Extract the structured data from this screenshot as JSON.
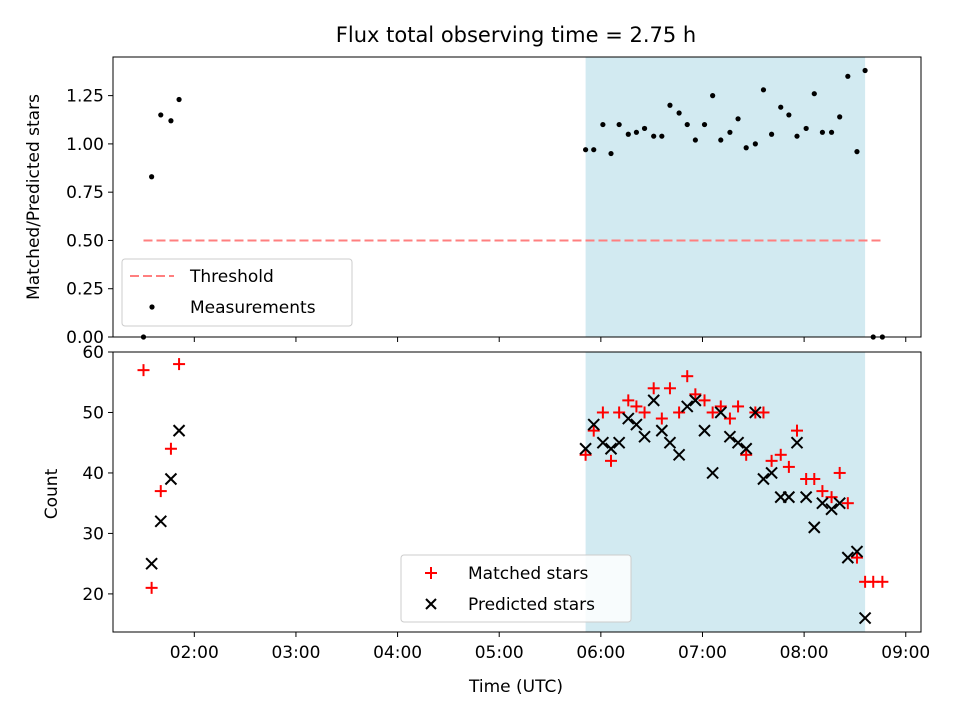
{
  "title": "Flux total observing time = 2.75 h",
  "colors": {
    "shade": "#add8e6",
    "threshold": "#ff7f7f",
    "matched": "#ff0000",
    "predicted": "#000000",
    "measurement": "#000000"
  },
  "chart_data": [
    {
      "type": "scatter",
      "panel": "top",
      "ylabel": "Matched/Predicted stars",
      "xlim": [
        1.2,
        9.15
      ],
      "ylim": [
        0,
        1.45
      ],
      "yticks": [
        0.0,
        0.25,
        0.5,
        0.75,
        1.0,
        1.25
      ],
      "ytick_labels": [
        "0.00",
        "0.25",
        "0.50",
        "0.75",
        "1.00",
        "1.25"
      ],
      "shaded_span": [
        5.85,
        8.6
      ],
      "threshold": {
        "label": "Threshold",
        "y": 0.5,
        "x_range": [
          1.5,
          8.78
        ]
      },
      "legend": {
        "position": "lower left",
        "entries": [
          "Threshold",
          "Measurements"
        ]
      },
      "series": [
        {
          "name": "Measurements",
          "x": [
            1.5,
            1.58,
            1.67,
            1.77,
            1.85,
            5.85,
            5.93,
            6.02,
            6.1,
            6.18,
            6.27,
            6.35,
            6.43,
            6.52,
            6.6,
            6.68,
            6.77,
            6.85,
            6.93,
            7.02,
            7.1,
            7.18,
            7.27,
            7.35,
            7.43,
            7.52,
            7.6,
            7.68,
            7.77,
            7.85,
            7.93,
            8.02,
            8.1,
            8.18,
            8.27,
            8.35,
            8.43,
            8.52,
            8.6,
            8.68,
            8.77
          ],
          "y": [
            0.0,
            0.83,
            1.15,
            1.12,
            1.23,
            0.97,
            0.97,
            1.1,
            0.95,
            1.1,
            1.05,
            1.06,
            1.08,
            1.04,
            1.04,
            1.2,
            1.16,
            1.1,
            1.02,
            1.1,
            1.25,
            1.02,
            1.06,
            1.13,
            0.98,
            1.0,
            1.28,
            1.05,
            1.19,
            1.15,
            1.04,
            1.08,
            1.26,
            1.06,
            1.06,
            1.14,
            1.35,
            0.96,
            1.38,
            0.0,
            0.0
          ]
        }
      ]
    },
    {
      "type": "scatter",
      "panel": "bottom",
      "xlabel": "Time (UTC)",
      "ylabel": "Count",
      "xlim": [
        1.2,
        9.15
      ],
      "ylim": [
        13.7,
        60
      ],
      "xticks": [
        2,
        3,
        4,
        5,
        6,
        7,
        8,
        9
      ],
      "xtick_labels": [
        "02:00",
        "03:00",
        "04:00",
        "05:00",
        "06:00",
        "07:00",
        "08:00",
        "09:00"
      ],
      "yticks": [
        20,
        30,
        40,
        50,
        60
      ],
      "ytick_labels": [
        "20",
        "30",
        "40",
        "50",
        "60"
      ],
      "shaded_span": [
        5.85,
        8.6
      ],
      "legend": {
        "position": "lower center",
        "entries": [
          "Matched stars",
          "Predicted stars"
        ]
      },
      "series": [
        {
          "name": "Matched stars",
          "marker": "+",
          "x": [
            1.5,
            1.58,
            1.67,
            1.77,
            1.85,
            5.85,
            5.93,
            6.02,
            6.1,
            6.18,
            6.27,
            6.35,
            6.43,
            6.52,
            6.6,
            6.68,
            6.77,
            6.85,
            6.93,
            7.02,
            7.1,
            7.18,
            7.27,
            7.35,
            7.43,
            7.52,
            7.6,
            7.68,
            7.77,
            7.85,
            7.93,
            8.02,
            8.1,
            8.18,
            8.27,
            8.35,
            8.43,
            8.52,
            8.6,
            8.68,
            8.77
          ],
          "y": [
            57,
            21,
            37,
            44,
            58,
            43,
            47,
            50,
            42,
            50,
            52,
            51,
            50,
            54,
            49,
            54,
            50,
            56,
            53,
            52,
            50,
            51,
            49,
            51,
            43,
            50,
            50,
            42,
            43,
            41,
            47,
            39,
            39,
            37,
            36,
            40,
            35,
            26,
            22,
            22,
            22
          ]
        },
        {
          "name": "Predicted stars",
          "marker": "x",
          "x": [
            1.58,
            1.67,
            1.77,
            1.85,
            5.85,
            5.93,
            6.02,
            6.1,
            6.18,
            6.27,
            6.35,
            6.43,
            6.52,
            6.6,
            6.68,
            6.77,
            6.85,
            6.93,
            7.02,
            7.1,
            7.18,
            7.27,
            7.35,
            7.43,
            7.52,
            7.6,
            7.68,
            7.77,
            7.85,
            7.93,
            8.02,
            8.1,
            8.18,
            8.27,
            8.35,
            8.43,
            8.52,
            8.6
          ],
          "y": [
            25,
            32,
            39,
            47,
            44,
            48,
            45,
            44,
            45,
            49,
            48,
            46,
            52,
            47,
            45,
            43,
            51,
            52,
            47,
            40,
            50,
            46,
            45,
            44,
            50,
            39,
            40,
            36,
            36,
            45,
            36,
            31,
            35,
            34,
            35,
            26,
            27,
            16
          ]
        }
      ]
    }
  ]
}
